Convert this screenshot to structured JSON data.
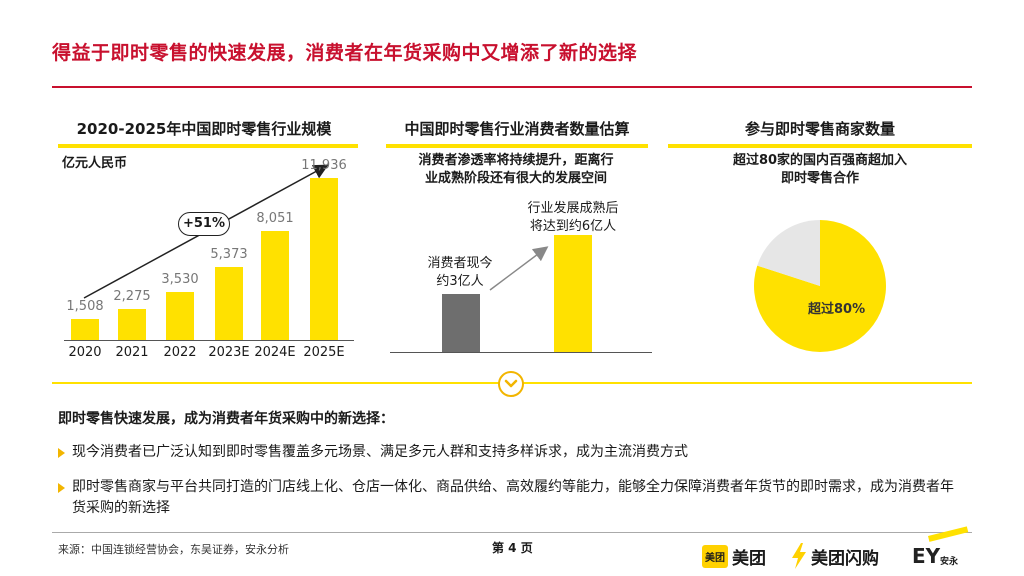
{
  "slide": {
    "title": "得益于即时零售的快速发展，消费者在年货采购中又增添了新的选择"
  },
  "panel_left": {
    "title": "2020-2025年中国即时零售行业规模",
    "unit": "亿元人民币",
    "growth_badge": "+51%"
  },
  "panel_middle": {
    "title": "中国即时零售行业消费者数量估算",
    "note_line1": "消费者渗透率将持续提升，距离行",
    "note_line2": "业成熟阶段还有很大的发展空间",
    "label_current_1": "消费者现今",
    "label_current_2": "约3亿人",
    "label_future_1": "行业发展成熟后",
    "label_future_2": "将达到约6亿人"
  },
  "panel_right": {
    "title": "参与即时零售商家数量",
    "note_line1": "超过80家的国内百强商超加入",
    "note_line2": "即时零售合作",
    "pie_label": "超过80%"
  },
  "chart_data": [
    {
      "type": "bar",
      "title": "2020-2025年中国即时零售行业规模",
      "ylabel": "亿元人民币",
      "categories": [
        "2020",
        "2021",
        "2022",
        "2023E",
        "2024E",
        "2025E"
      ],
      "values": [
        1508,
        2275,
        3530,
        5373,
        8051,
        11936
      ],
      "value_labels": [
        "1,508",
        "2,275",
        "3,530",
        "5,373",
        "8,051",
        "11,936"
      ],
      "ylim": [
        0,
        12500
      ],
      "annotation": "+51%",
      "colors": {
        "bar": "#ffe100",
        "value_text": "#777777"
      }
    },
    {
      "type": "bar",
      "title": "中国即时零售行业消费者数量估算",
      "categories": [
        "消费者现今约3亿人",
        "行业发展成熟后将达到约6亿人"
      ],
      "values": [
        3,
        6
      ],
      "ylim": [
        0,
        7.5
      ],
      "colors": {
        "current": "#6e6e6e",
        "future": "#ffe100"
      }
    },
    {
      "type": "pie",
      "title": "参与即时零售商家数量",
      "slices": [
        {
          "label": "超过80%",
          "value": 80,
          "color": "#ffe100"
        },
        {
          "label": "",
          "value": 20,
          "color": "#e6e6e6"
        }
      ]
    }
  ],
  "summary": {
    "heading": "即时零售快速发展，成为消费者年货采购中的新选择：",
    "bullets": [
      "现今消费者已广泛认知到即时零售覆盖多元场景、满足多元人群和支持多样诉求，成为主流消费方式",
      "即时零售商家与平台共同打造的门店线上化、仓店一体化、商品供给、高效履约等能力，能够全力保障消费者年货节的即时需求，成为消费者年货采购的新选择"
    ]
  },
  "footer": {
    "source": "来源：中国连锁经营协会，东吴证券，安永分析",
    "page": "第 4 页"
  },
  "logos": {
    "meituan_box": "美团",
    "meituan_text": "美团",
    "shangou_text": "美团闪购",
    "ey_text": "EY",
    "ey_sub": "安永"
  },
  "colors": {
    "brand_red": "#c8102e",
    "accent_yellow": "#ffe100",
    "bullet_gold": "#f2b500"
  }
}
